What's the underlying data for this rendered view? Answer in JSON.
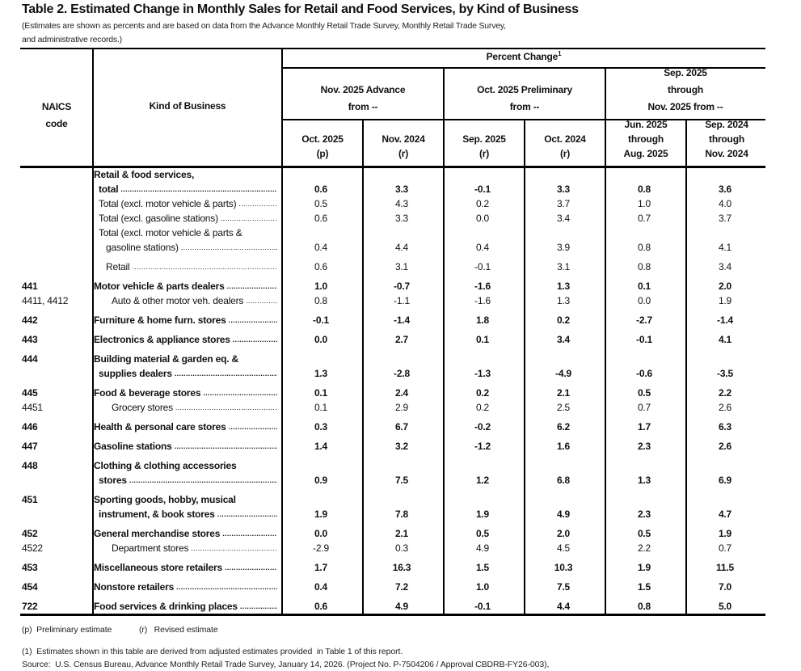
{
  "title": "Table 2.  Estimated Change in Monthly Sales for Retail and Food Services, by Kind of Business",
  "subtitle": [
    "(Estimates are shown as percents and are based on data from the Advance Monthly Retail Trade Survey,  Monthly Retail Trade Survey,",
    " and administrative records.)"
  ],
  "header": {
    "naics": [
      "NAICS",
      "code"
    ],
    "kind": "Kind of Business",
    "percent_change": "Percent Change",
    "percent_change_sup": "1",
    "groups": [
      {
        "lines": [
          "Nov. 2025 Advance",
          "from --"
        ]
      },
      {
        "lines": [
          "Oct. 2025 Preliminary",
          "from --"
        ]
      },
      {
        "lines": [
          "Sep. 2025",
          "through",
          "Nov. 2025 from --"
        ]
      }
    ],
    "columns": [
      {
        "lines": [
          "Oct. 2025",
          "(p)"
        ]
      },
      {
        "lines": [
          "Nov. 2024",
          "(r)"
        ]
      },
      {
        "lines": [
          "Sep. 2025",
          "(r)"
        ]
      },
      {
        "lines": [
          "Oct. 2024",
          "(r)"
        ]
      },
      {
        "lines": [
          "Jun. 2025",
          "through",
          "Aug. 2025"
        ]
      },
      {
        "lines": [
          "Sep. 2024",
          "through",
          "Nov. 2024"
        ]
      }
    ]
  },
  "rows": [
    {
      "code": "",
      "bold": true,
      "pad": false,
      "lines": [
        "Retail & food services,",
        "total"
      ],
      "indents": [
        0,
        6
      ],
      "values": [
        "0.6",
        "3.3",
        "-0.1",
        "3.3",
        "0.8",
        "3.6"
      ]
    },
    {
      "code": "",
      "bold": false,
      "pad": false,
      "lines": [
        "Total (excl. motor vehicle & parts)"
      ],
      "indents": [
        6
      ],
      "values": [
        "0.5",
        "4.3",
        "0.2",
        "3.7",
        "1.0",
        "4.0"
      ]
    },
    {
      "code": "",
      "bold": false,
      "pad": false,
      "lines": [
        "Total (excl. gasoline stations)"
      ],
      "indents": [
        6
      ],
      "values": [
        "0.6",
        "3.3",
        "0.0",
        "3.4",
        "0.7",
        "3.7"
      ]
    },
    {
      "code": "",
      "bold": false,
      "pad": false,
      "lines": [
        "Total (excl. motor vehicle & parts &",
        "gasoline stations)"
      ],
      "indents": [
        6,
        15
      ],
      "values": [
        "0.4",
        "4.4",
        "0.4",
        "3.9",
        "0.8",
        "4.1"
      ]
    },
    {
      "code": "",
      "bold": false,
      "pad": true,
      "lines": [
        "Retail"
      ],
      "indents": [
        15
      ],
      "values": [
        "0.6",
        "3.1",
        "-0.1",
        "3.1",
        "0.8",
        "3.4"
      ]
    },
    {
      "code": "441",
      "bold": true,
      "pad": true,
      "lines": [
        "Motor vehicle & parts dealers"
      ],
      "indents": [
        0
      ],
      "values": [
        "1.0",
        "-0.7",
        "-1.6",
        "1.3",
        "0.1",
        "2.0"
      ]
    },
    {
      "code": "4411, 4412",
      "bold": false,
      "pad": false,
      "lines": [
        "Auto & other motor veh. dealers"
      ],
      "indents": [
        22
      ],
      "values": [
        "0.8",
        "-1.1",
        "-1.6",
        "1.3",
        "0.0",
        "1.9"
      ]
    },
    {
      "code": "442",
      "bold": true,
      "pad": true,
      "lines": [
        "Furniture & home furn. stores"
      ],
      "indents": [
        0
      ],
      "values": [
        "-0.1",
        "-1.4",
        "1.8",
        "0.2",
        "-2.7",
        "-1.4"
      ]
    },
    {
      "code": "443",
      "bold": true,
      "pad": true,
      "lines": [
        "Electronics & appliance stores"
      ],
      "indents": [
        0
      ],
      "values": [
        "0.0",
        "2.7",
        "0.1",
        "3.4",
        "-0.1",
        "4.1"
      ]
    },
    {
      "code": "444",
      "bold": true,
      "pad": true,
      "lines": [
        "Building material & garden eq. &",
        "supplies dealers"
      ],
      "indents": [
        0,
        6
      ],
      "values": [
        "1.3",
        "-2.8",
        "-1.3",
        "-4.9",
        "-0.6",
        "-3.5"
      ]
    },
    {
      "code": "445",
      "bold": true,
      "pad": true,
      "lines": [
        "Food & beverage stores"
      ],
      "indents": [
        0
      ],
      "values": [
        "0.1",
        "2.4",
        "0.2",
        "2.1",
        "0.5",
        "2.2"
      ]
    },
    {
      "code": "4451",
      "bold": false,
      "pad": false,
      "lines": [
        "Grocery stores"
      ],
      "indents": [
        22
      ],
      "values": [
        "0.1",
        "2.9",
        "0.2",
        "2.5",
        "0.7",
        "2.6"
      ]
    },
    {
      "code": "446",
      "bold": true,
      "pad": true,
      "lines": [
        "Health & personal care stores"
      ],
      "indents": [
        0
      ],
      "values": [
        "0.3",
        "6.7",
        "-0.2",
        "6.2",
        "1.7",
        "6.3"
      ]
    },
    {
      "code": "447",
      "bold": true,
      "pad": true,
      "lines": [
        "Gasoline stations"
      ],
      "indents": [
        0
      ],
      "values": [
        "1.4",
        "3.2",
        "-1.2",
        "1.6",
        "2.3",
        "2.6"
      ]
    },
    {
      "code": "448",
      "bold": true,
      "pad": true,
      "lines": [
        "Clothing & clothing accessories",
        "stores"
      ],
      "indents": [
        0,
        6
      ],
      "values": [
        "0.9",
        "7.5",
        "1.2",
        "6.8",
        "1.3",
        "6.9"
      ]
    },
    {
      "code": "451",
      "bold": true,
      "pad": true,
      "lines": [
        "Sporting goods, hobby, musical",
        "instrument, & book stores"
      ],
      "indents": [
        0,
        6
      ],
      "values": [
        "1.9",
        "7.8",
        "1.9",
        "4.9",
        "2.3",
        "4.7"
      ]
    },
    {
      "code": "452",
      "bold": true,
      "pad": true,
      "lines": [
        "General merchandise stores"
      ],
      "indents": [
        0
      ],
      "values": [
        "0.0",
        "2.1",
        "0.5",
        "2.0",
        "0.5",
        "1.9"
      ]
    },
    {
      "code": "4522",
      "bold": false,
      "pad": false,
      "lines": [
        "Department stores"
      ],
      "indents": [
        22
      ],
      "values": [
        "-2.9",
        "0.3",
        "4.9",
        "4.5",
        "2.2",
        "0.7"
      ]
    },
    {
      "code": "453",
      "bold": true,
      "pad": true,
      "lines": [
        "Miscellaneous store retailers"
      ],
      "indents": [
        0
      ],
      "values": [
        "1.7",
        "16.3",
        "1.5",
        "10.3",
        "1.9",
        "11.5"
      ]
    },
    {
      "code": "454",
      "bold": true,
      "pad": true,
      "lines": [
        "Nonstore retailers"
      ],
      "indents": [
        0
      ],
      "values": [
        "0.4",
        "7.2",
        "1.0",
        "7.5",
        "1.5",
        "7.0"
      ]
    },
    {
      "code": "722",
      "bold": true,
      "pad": true,
      "lines": [
        "Food services & drinking places"
      ],
      "indents": [
        0
      ],
      "values": [
        "0.6",
        "4.9",
        "-0.1",
        "4.4",
        "0.8",
        "5.0"
      ]
    }
  ],
  "footnotes": {
    "legend_p": "(p)  Preliminary estimate",
    "legend_r": "(r)   Revised estimate",
    "note1": "(1)  Estimates shown in this table are derived from adjusted estimates provided  in Table 1 of this report.",
    "source": "Source:  U.S. Census Bureau, Advance Monthly Retail Trade Survey, January 14, 2026. (Project No. P-7504206 / Approval CBDRB-FY26-003),"
  }
}
